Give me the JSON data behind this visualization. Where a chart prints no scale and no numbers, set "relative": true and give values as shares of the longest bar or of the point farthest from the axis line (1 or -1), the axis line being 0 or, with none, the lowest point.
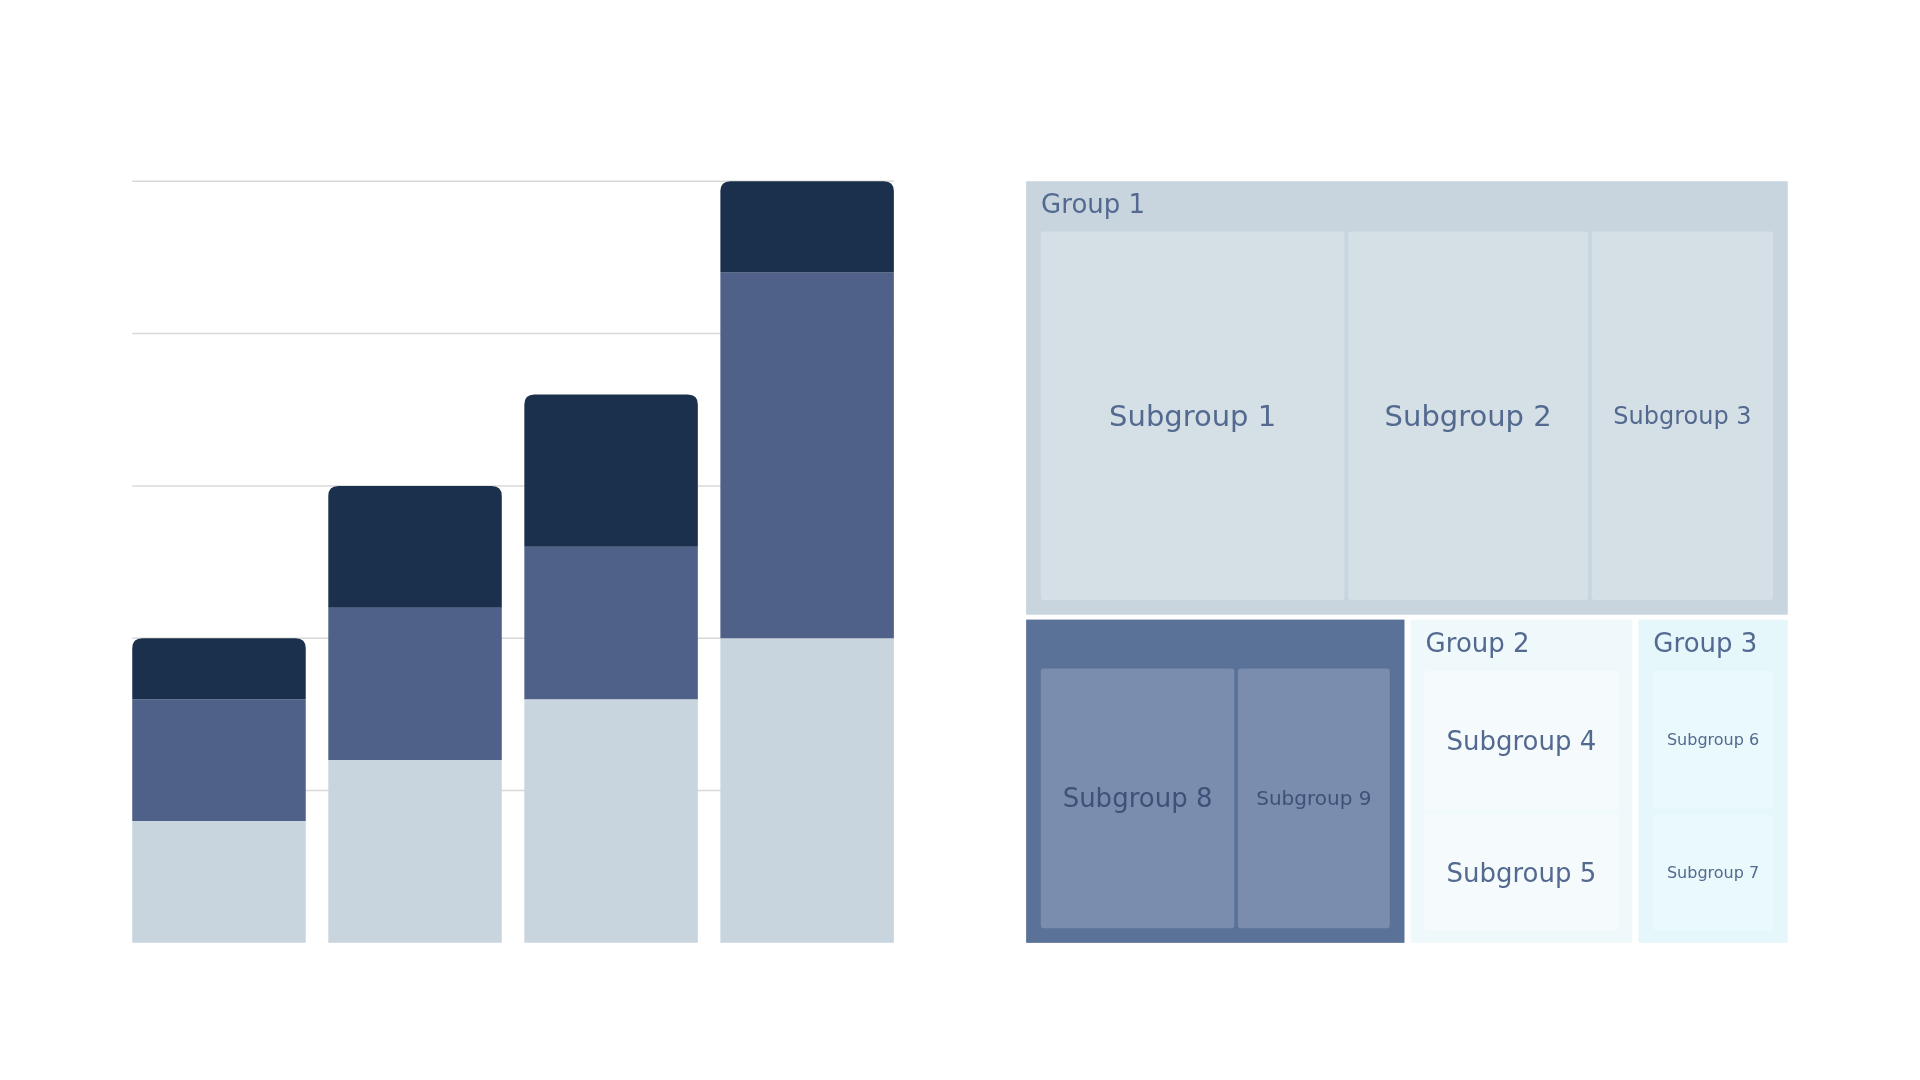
{
  "chart_data": [
    {
      "type": "bar",
      "relative": true,
      "stacked": true,
      "grid": true,
      "categories": [
        null,
        null,
        null,
        null
      ],
      "series": [
        {
          "color": "#c8d5df",
          "values": [
            0.16,
            0.24,
            0.32,
            0.4
          ]
        },
        {
          "color": "#4f6188",
          "values": [
            0.16,
            0.2,
            0.2,
            0.48
          ]
        },
        {
          "color": "#1b304d",
          "values": [
            0.08,
            0.16,
            0.2,
            0.12
          ]
        }
      ]
    },
    {
      "type": "other",
      "categories": [
        "Subgroup 1",
        "Subgroup 2",
        "Subgroup 3",
        "Subgroup 8",
        "Subgroup 9",
        "Subgroup 4",
        "Subgroup 5",
        "Subgroup 6",
        "Subgroup 7"
      ],
      "colors": [
        "#d5e0e6",
        "#d5e0e6",
        "#d5e0e6",
        "#7b8dae",
        "#7b8dae",
        "#f5fbfc",
        "#f5fbfc",
        "#e9f9fc",
        "#e9f9fc"
      ],
      "annotations": [
        "Group 1",
        "Group 2",
        "Group 3"
      ]
    }
  ]
}
